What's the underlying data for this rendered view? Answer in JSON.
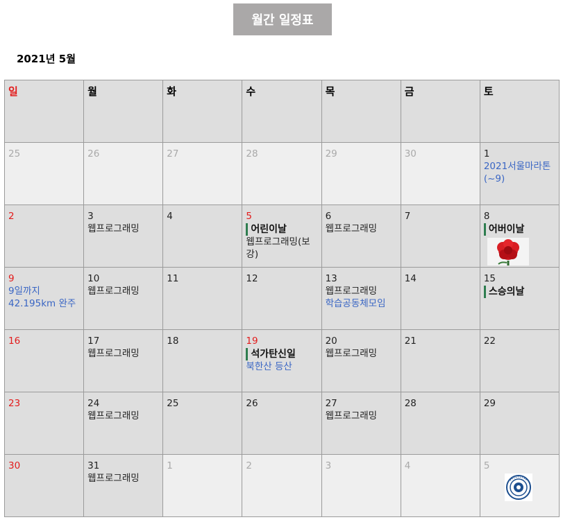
{
  "header": {
    "title_button": "월간 일정표",
    "month_label": "2021년 5월"
  },
  "weekdays": [
    "일",
    "월",
    "화",
    "수",
    "목",
    "금",
    "토"
  ],
  "weeks": [
    [
      {
        "day": "25",
        "other": true
      },
      {
        "day": "26",
        "other": true
      },
      {
        "day": "27",
        "other": true
      },
      {
        "day": "28",
        "other": true
      },
      {
        "day": "29",
        "other": true
      },
      {
        "day": "30",
        "other": true
      },
      {
        "day": "1",
        "events": [
          {
            "text": "2021서울마라톤(~9)",
            "style": "blue"
          }
        ]
      }
    ],
    [
      {
        "day": "2"
      },
      {
        "day": "3",
        "events": [
          {
            "text": "웹프로그래밍",
            "style": "normal"
          }
        ]
      },
      {
        "day": "4"
      },
      {
        "day": "5",
        "red": true,
        "events": [
          {
            "text": "어린이날",
            "style": "holiday"
          },
          {
            "text": "웹프로그래밍(보강)",
            "style": "normal"
          }
        ]
      },
      {
        "day": "6",
        "events": [
          {
            "text": "웹프로그래밍",
            "style": "normal"
          }
        ]
      },
      {
        "day": "7"
      },
      {
        "day": "8",
        "events": [
          {
            "text": "어버이날",
            "style": "holiday"
          }
        ],
        "image": "carnation-flower"
      }
    ],
    [
      {
        "day": "9",
        "events": [
          {
            "text": "9일까지",
            "style": "blue"
          },
          {
            "text": "42.195km 완주",
            "style": "blue"
          }
        ]
      },
      {
        "day": "10",
        "events": [
          {
            "text": "웹프로그래밍",
            "style": "normal"
          }
        ]
      },
      {
        "day": "11"
      },
      {
        "day": "12"
      },
      {
        "day": "13",
        "events": [
          {
            "text": "웹프로그래밍",
            "style": "normal"
          },
          {
            "text": "학습공동체모임",
            "style": "blue"
          }
        ]
      },
      {
        "day": "14"
      },
      {
        "day": "15",
        "events": [
          {
            "text": "스승의날",
            "style": "holiday"
          }
        ]
      }
    ],
    [
      {
        "day": "16"
      },
      {
        "day": "17",
        "events": [
          {
            "text": "웹프로그래밍",
            "style": "normal"
          }
        ]
      },
      {
        "day": "18"
      },
      {
        "day": "19",
        "red": true,
        "events": [
          {
            "text": "석가탄신일",
            "style": "holiday"
          },
          {
            "text": "북한산 등산",
            "style": "blue"
          }
        ]
      },
      {
        "day": "20",
        "events": [
          {
            "text": "웹프로그래밍",
            "style": "normal"
          }
        ]
      },
      {
        "day": "21"
      },
      {
        "day": "22"
      }
    ],
    [
      {
        "day": "23"
      },
      {
        "day": "24",
        "events": [
          {
            "text": "웹프로그래밍",
            "style": "normal"
          }
        ]
      },
      {
        "day": "25"
      },
      {
        "day": "26"
      },
      {
        "day": "27",
        "events": [
          {
            "text": "웹프로그래밍",
            "style": "normal"
          }
        ]
      },
      {
        "day": "28"
      },
      {
        "day": "29"
      }
    ],
    [
      {
        "day": "30"
      },
      {
        "day": "31",
        "events": [
          {
            "text": "웹프로그래밍",
            "style": "normal"
          }
        ]
      },
      {
        "day": "1",
        "other": true
      },
      {
        "day": "2",
        "other": true
      },
      {
        "day": "3",
        "other": true
      },
      {
        "day": "4",
        "other": true
      },
      {
        "day": "5",
        "other": true,
        "image": "university-seal"
      }
    ]
  ],
  "colors": {
    "sunday_red": "#e31b1b",
    "event_blue": "#3a66c4",
    "holiday_bar_green": "#2e7d4f",
    "title_button_bg": "#aaa8a8",
    "cell_bg": "#dedede",
    "other_month_bg": "#efefef"
  }
}
